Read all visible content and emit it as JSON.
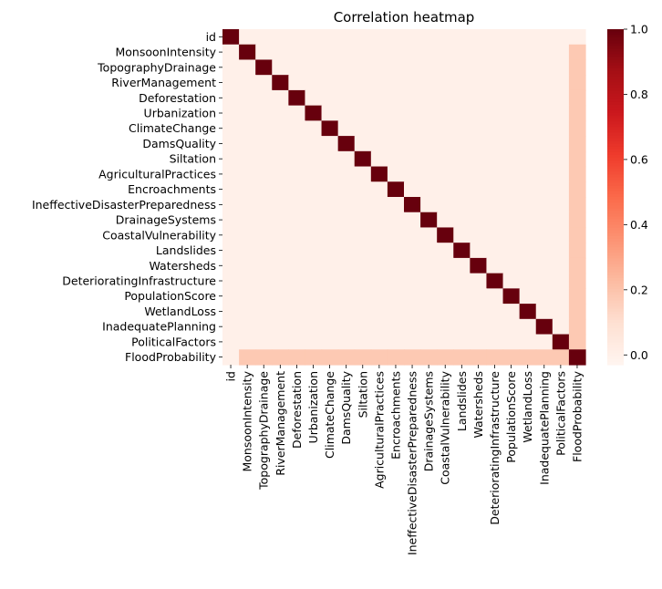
{
  "chart_data": {
    "type": "heatmap",
    "title": "Correlation heatmap",
    "labels": [
      "id",
      "MonsoonIntensity",
      "TopographyDrainage",
      "RiverManagement",
      "Deforestation",
      "Urbanization",
      "ClimateChange",
      "DamsQuality",
      "Siltation",
      "AgriculturalPractices",
      "Encroachments",
      "IneffectiveDisasterPreparedness",
      "DrainageSystems",
      "CoastalVulnerability",
      "Landslides",
      "Watersheds",
      "DeterioratingInfrastructure",
      "PopulationScore",
      "WetlandLoss",
      "InadequatePlanning",
      "PoliticalFactors",
      "FloodProbability"
    ],
    "diagonal_value": 1.0,
    "off_diagonal_value": 0.0,
    "flood_probability_correlation": 0.18,
    "id_correlation": 0.0,
    "colormap": "Reds",
    "colormap_stops": [
      "#fff5f0",
      "#fee0d2",
      "#fcbba1",
      "#fc9272",
      "#fb6a4a",
      "#ef3b2c",
      "#cb181d",
      "#a50f15",
      "#67000d"
    ],
    "colorbar": {
      "vmin": -0.03,
      "vmax": 1.0,
      "ticks": [
        0.0,
        0.2,
        0.4,
        0.6,
        0.8,
        1.0
      ],
      "tick_labels": [
        "0.0",
        "0.2",
        "0.4",
        "0.6",
        "0.8",
        "1.0"
      ]
    }
  }
}
